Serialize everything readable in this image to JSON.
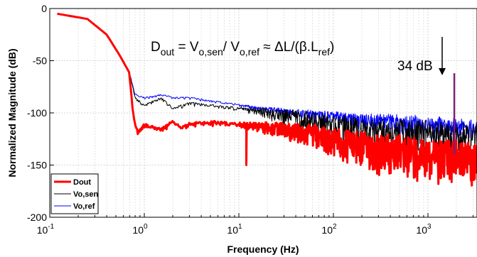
{
  "chart_data": {
    "type": "line",
    "xscale": "log",
    "xlim": [
      0.1,
      4000
    ],
    "ylim": [
      -200,
      0
    ],
    "xlabel": "Frequency (Hz)",
    "ylabel": "Normalized Magnitude (dB)",
    "yticks": [
      "0",
      "-50",
      "-100",
      "-150",
      "-200"
    ],
    "xticks": [
      {
        "base": "10",
        "exp": "-1"
      },
      {
        "base": "10",
        "exp": "0"
      },
      {
        "base": "10",
        "exp": "1"
      },
      {
        "base": "10",
        "exp": "2"
      },
      {
        "base": "10",
        "exp": "3"
      }
    ],
    "grid": true,
    "legend_position": "bottom-left",
    "series": [
      {
        "name": "Dout",
        "color": "#ff0000",
        "envelope": {
          "x": [
            0.12,
            0.25,
            0.4,
            0.55,
            0.7,
            0.76,
            0.85,
            1.0,
            1.5,
            2.0,
            2.5,
            3.0,
            5.0,
            10.0,
            20.0,
            50.0,
            100.0,
            300.0,
            1000.0,
            4000.0
          ],
          "y": [
            -5,
            -10,
            -25,
            -45,
            -62,
            -100,
            -118,
            -110,
            -115,
            -108,
            -113,
            -110,
            -108,
            -110,
            -110,
            -112,
            -118,
            -125,
            -128,
            -135
          ]
        },
        "spikes": [
          {
            "x": 12,
            "y": -150
          },
          {
            "x": 1900,
            "y": -120
          }
        ]
      },
      {
        "name": "Vo,sen",
        "color": "#000000",
        "envelope": {
          "x": [
            0.12,
            0.25,
            0.4,
            0.55,
            0.7,
            0.8,
            1.0,
            1.5,
            2.0,
            3.0,
            5.0,
            10.0,
            20.0,
            50.0,
            100.0,
            300.0,
            1000.0,
            4000.0
          ],
          "y": [
            -5,
            -10,
            -25,
            -45,
            -62,
            -85,
            -92,
            -85,
            -95,
            -90,
            -92,
            -95,
            -97,
            -100,
            -105,
            -110,
            -112,
            -115
          ]
        }
      },
      {
        "name": "Vo,ref",
        "color": "#0000ff",
        "envelope": {
          "x": [
            0.12,
            0.25,
            0.4,
            0.55,
            0.7,
            0.8,
            1.0,
            1.5,
            2.0,
            3.0,
            5.0,
            10.0,
            20.0,
            50.0,
            100.0,
            300.0,
            1000.0,
            4000.0
          ],
          "y": [
            -5,
            -10,
            -25,
            -45,
            -62,
            -82,
            -85,
            -82,
            -85,
            -85,
            -88,
            -92,
            -95,
            -98,
            -100,
            -103,
            -106,
            -110
          ]
        }
      }
    ],
    "annotations": {
      "equation": {
        "lhs": "D",
        "lhs_sub": "out",
        "t1": " = V",
        "s1": "o,sen",
        "t2": "/ V",
        "s2": "o,ref",
        "t3": " ≈ ΔL/(β.L",
        "s3": "ref",
        "t4": ")"
      },
      "peak_label": "34 dB",
      "peak_x": 1900,
      "peak_y": -62
    }
  }
}
